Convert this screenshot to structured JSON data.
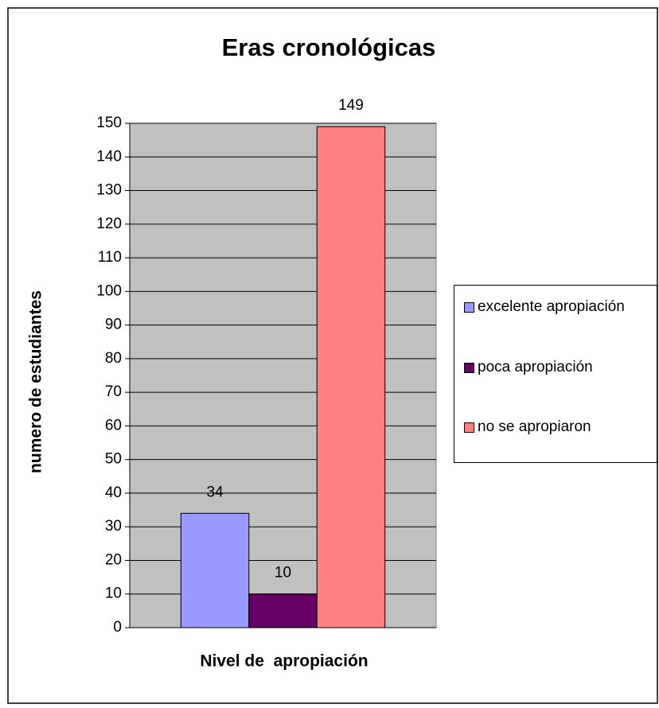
{
  "chart_data": {
    "type": "bar",
    "title": "Eras cronológicas",
    "x_label": "Nivel de  apropiación",
    "y_label": "numero de estudiantes",
    "categories": [
      null
    ],
    "series": [
      {
        "name": "excelente apropiación",
        "color": "#9999ff",
        "values": [
          34
        ]
      },
      {
        "name": "poca apropiación",
        "color": "#660066",
        "values": [
          10
        ]
      },
      {
        "name": "no se apropiaron",
        "color": "#ff8080",
        "values": [
          149
        ]
      }
    ],
    "ylim": [
      0,
      150
    ],
    "yticks": [
      0,
      10,
      20,
      30,
      40,
      50,
      60,
      70,
      80,
      90,
      100,
      110,
      120,
      130,
      140,
      150
    ],
    "grid": true,
    "legend": "right",
    "plot_background": "#c0c0c0"
  }
}
